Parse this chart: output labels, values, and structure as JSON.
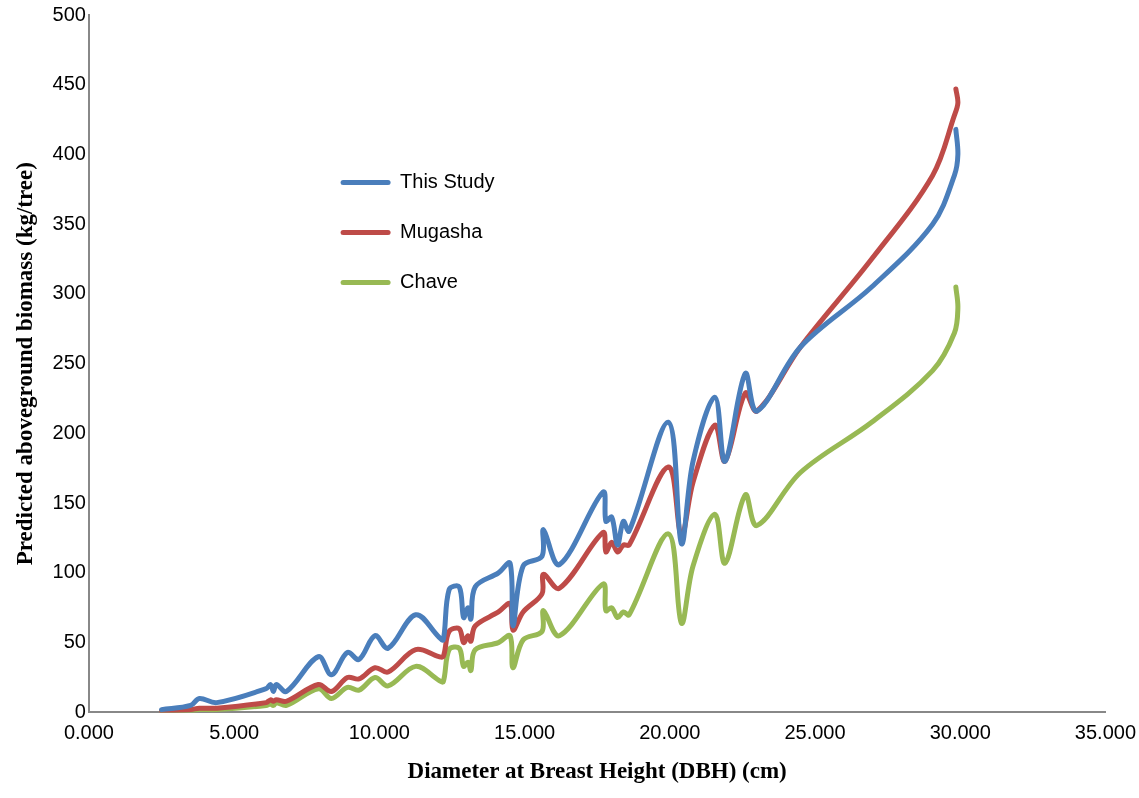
{
  "chart_data": {
    "type": "line",
    "xlabel": "Diameter at Breast Height (DBH) (cm)",
    "ylabel": "Predicted aboveground biomass (kg/tree)",
    "x": [
      2.5,
      3.5,
      3.8,
      4.4,
      6.1,
      6.25,
      6.35,
      6.45,
      6.8,
      7.9,
      8.35,
      8.9,
      9.3,
      9.85,
      10.3,
      11.25,
      12.05,
      12.2,
      12.4,
      12.75,
      12.9,
      13.05,
      13.15,
      13.3,
      14.1,
      14.5,
      14.6,
      14.95,
      15.6,
      15.65,
      16.2,
      17.7,
      17.8,
      18.0,
      18.2,
      18.4,
      18.6,
      19.95,
      20.4,
      20.8,
      21.55,
      21.9,
      22.6,
      23.0,
      24.5,
      26.95,
      29.05,
      29.8,
      29.92,
      29.85
    ],
    "series": [
      {
        "name": "This Study",
        "color": "#4a7ebb",
        "values": [
          2,
          5,
          10,
          7,
          17,
          20,
          15,
          20,
          15,
          40,
          27,
          43,
          38,
          55,
          46,
          70,
          54,
          52,
          88,
          90,
          68,
          75,
          67,
          90,
          100,
          107,
          62,
          105,
          112,
          131,
          106,
          158,
          137,
          140,
          120,
          137,
          130,
          208,
          121,
          180,
          226,
          180,
          243,
          216,
          262,
          305,
          350,
          385,
          400,
          418
        ]
      },
      {
        "name": "Mugasha",
        "color": "#be4b48",
        "values": [
          1,
          2,
          3,
          3,
          7,
          9,
          8,
          9,
          8,
          20,
          15,
          25,
          24,
          32,
          29,
          45,
          40,
          40,
          58,
          60,
          50,
          55,
          51,
          62,
          72,
          78,
          59,
          72,
          85,
          99,
          89,
          129,
          115,
          122,
          115,
          120,
          120,
          176,
          127,
          165,
          206,
          180,
          229,
          216,
          262,
          325,
          385,
          428,
          437,
          447
        ]
      },
      {
        "name": "Chave",
        "color": "#98b954",
        "values": [
          1,
          1,
          2,
          2,
          5,
          6,
          5,
          7,
          5,
          17,
          10,
          18,
          16,
          25,
          19,
          33,
          23,
          22,
          45,
          46,
          33,
          36,
          30,
          45,
          50,
          55,
          32,
          52,
          58,
          73,
          55,
          92,
          73,
          75,
          68,
          72,
          70,
          128,
          64,
          105,
          142,
          107,
          156,
          134,
          172,
          208,
          245,
          272,
          290,
          305
        ]
      }
    ],
    "xlim": [
      0,
      35
    ],
    "xticks": [
      {
        "value": 0,
        "label": "0.000"
      },
      {
        "value": 5,
        "label": "5.000"
      },
      {
        "value": 10,
        "label": "10.000"
      },
      {
        "value": 15,
        "label": "15.000"
      },
      {
        "value": 20,
        "label": "20.000"
      },
      {
        "value": 25,
        "label": "25.000"
      },
      {
        "value": 30,
        "label": "30.000"
      },
      {
        "value": 35,
        "label": "35.000"
      }
    ],
    "ylim": [
      0,
      500
    ],
    "yticks": [
      0,
      50,
      100,
      150,
      200,
      250,
      300,
      350,
      400,
      450,
      500
    ],
    "legend": "top left",
    "marker": "none",
    "line_style": "solid"
  }
}
